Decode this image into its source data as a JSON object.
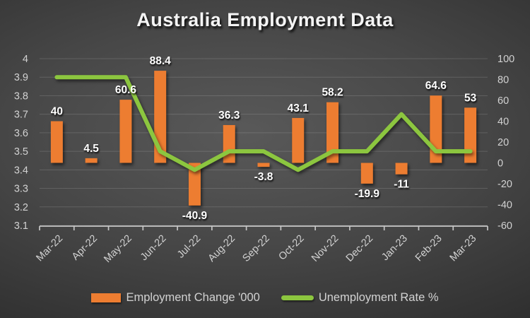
{
  "title": "Australia Employment Data",
  "chart_data": {
    "type": "combo",
    "title": "Australia Employment Data",
    "categories": [
      "Mar-22",
      "Apr-22",
      "May-22",
      "Jun-22",
      "Jul-22",
      "Aug-22",
      "Sep-22",
      "Oct-22",
      "Nov-22",
      "Dec-22",
      "Jan-23",
      "Feb-23",
      "Mar-23"
    ],
    "series": [
      {
        "name": "Employment Change '000",
        "type": "bar",
        "axis": "right",
        "color": "#ED7D31",
        "values": [
          40,
          4.5,
          60.6,
          88.4,
          -40.9,
          36.3,
          -3.8,
          43.1,
          58.2,
          -19.9,
          -11,
          64.6,
          53
        ],
        "labels": [
          "40",
          "4.5",
          "60.6",
          "88.4",
          "-40.9",
          "36.3",
          "-3.8",
          "43.1",
          "58.2",
          "-19.9",
          "-11",
          "64.6",
          "53"
        ]
      },
      {
        "name": "Unemployment Rate %",
        "type": "line",
        "axis": "left",
        "color": "#8CC63F",
        "values": [
          3.9,
          3.9,
          3.9,
          3.5,
          3.4,
          3.5,
          3.5,
          3.4,
          3.5,
          3.5,
          3.7,
          3.5,
          3.5
        ]
      }
    ],
    "left_axis": {
      "min": 3.1,
      "max": 4.0,
      "step": 0.1,
      "ticks": [
        "4",
        "3.9",
        "3.8",
        "3.7",
        "3.6",
        "3.5",
        "3.4",
        "3.3",
        "3.2",
        "3.1"
      ]
    },
    "right_axis": {
      "min": -60,
      "max": 100,
      "step": 20,
      "ticks": [
        "100",
        "80",
        "60",
        "40",
        "20",
        "0",
        "-20",
        "-40",
        "-60"
      ]
    },
    "grid": true,
    "legend_position": "bottom"
  },
  "colors": {
    "bar": "#ED7D31",
    "line": "#8CC63F",
    "axis_text": "#d2d2d2",
    "title_text": "#f5f5f5",
    "background_center": "#595959",
    "background_edge": "#242424"
  }
}
